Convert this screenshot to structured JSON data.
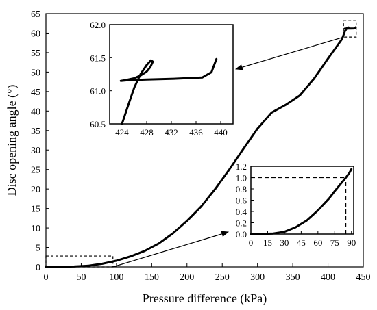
{
  "chart_data": [
    {
      "id": "main",
      "type": "line",
      "xlabel": "Pressure difference (kPa)",
      "ylabel": "Disc opening angle (°)",
      "xlim": [
        0,
        450
      ],
      "ylim": [
        0,
        65
      ],
      "xticks": [
        0,
        50,
        100,
        150,
        200,
        250,
        300,
        350,
        400,
        450
      ],
      "yticks": [
        0,
        5,
        10,
        15,
        20,
        25,
        30,
        35,
        40,
        45,
        50,
        55,
        60,
        65
      ],
      "series": [
        {
          "x": [
            0,
            20,
            40,
            60,
            80,
            100,
            120,
            140,
            160,
            180,
            200,
            220,
            240,
            260,
            280,
            300,
            320,
            340,
            360,
            380,
            400,
            420,
            424,
            426,
            428,
            429,
            428,
            426,
            424,
            432,
            437,
            438.5,
            439.3
          ],
          "y": [
            0,
            0.02,
            0.1,
            0.3,
            0.8,
            1.6,
            2.7,
            4.1,
            6.0,
            8.6,
            11.8,
            15.5,
            20.0,
            25.0,
            30.3,
            35.5,
            39.6,
            41.6,
            44.0,
            48.3,
            53.5,
            58.5,
            60.5,
            61.05,
            61.4,
            61.45,
            61.3,
            61.2,
            61.15,
            61.18,
            61.2,
            61.28,
            61.5
          ]
        }
      ],
      "annotations": [
        {
          "type": "dashed-box",
          "x": [
            0,
            95
          ],
          "y": [
            0,
            2.8
          ]
        },
        {
          "type": "dashed-box",
          "x": [
            422,
            440
          ],
          "y": [
            59,
            63.2
          ]
        }
      ]
    },
    {
      "id": "inset-zoom-top",
      "type": "line",
      "xlim": [
        422,
        442
      ],
      "ylim": [
        60.5,
        62.0
      ],
      "xticks": [
        424,
        428,
        432,
        436,
        440
      ],
      "yticks": [
        60.5,
        61.0,
        61.5,
        62.0
      ],
      "series": [
        {
          "x": [
            424,
            425,
            426,
            427,
            428,
            428.7,
            429,
            428.6,
            428,
            427,
            426,
            424.5,
            423.8,
            425,
            428,
            432,
            437,
            438.5,
            439.3
          ],
          "y": [
            60.5,
            60.78,
            61.05,
            61.25,
            61.39,
            61.46,
            61.44,
            61.36,
            61.29,
            61.23,
            61.19,
            61.16,
            61.15,
            61.16,
            61.17,
            61.18,
            61.2,
            61.28,
            61.48
          ]
        }
      ]
    },
    {
      "id": "inset-zoom-bottom",
      "type": "line",
      "xlim": [
        0,
        92
      ],
      "ylim": [
        0,
        1.2
      ],
      "xticks": [
        0,
        15,
        30,
        45,
        60,
        75,
        90
      ],
      "yticks": [
        0.0,
        0.2,
        0.4,
        0.6,
        0.8,
        1.0,
        1.2
      ],
      "series": [
        {
          "x": [
            0,
            10,
            20,
            30,
            40,
            50,
            60,
            70,
            75,
            80,
            85,
            88,
            90
          ],
          "y": [
            0,
            0.002,
            0.01,
            0.04,
            0.12,
            0.24,
            0.42,
            0.63,
            0.76,
            0.88,
            1.0,
            1.08,
            1.15
          ]
        }
      ],
      "reference_lines": [
        {
          "orientation": "horizontal",
          "y": 1.0,
          "x": [
            0,
            85
          ]
        },
        {
          "orientation": "vertical",
          "x": 85,
          "y": [
            0,
            1.0
          ]
        }
      ]
    }
  ]
}
